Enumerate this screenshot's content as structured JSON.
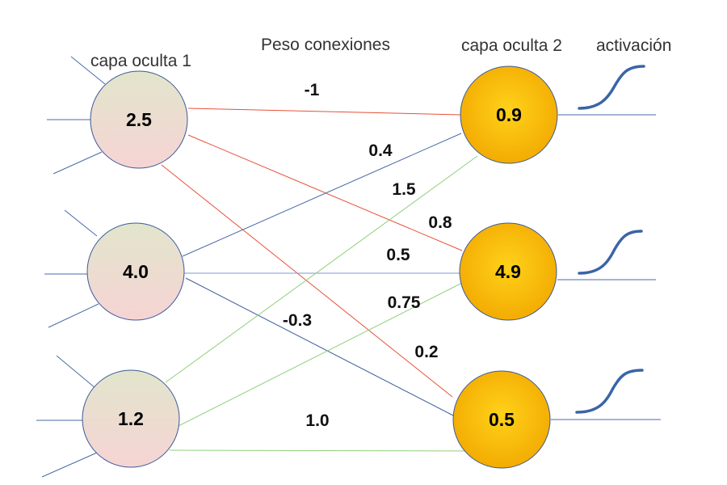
{
  "labels": {
    "layer1": "capa oculta 1",
    "weights_title": "Peso conexiones",
    "layer2": "capa oculta 2",
    "activation": "activación"
  },
  "layer1_nodes": [
    {
      "value": "2.5"
    },
    {
      "value": "4.0"
    },
    {
      "value": "1.2"
    }
  ],
  "layer2_nodes": [
    {
      "value": "0.9"
    },
    {
      "value": "4.9"
    },
    {
      "value": "0.5"
    }
  ],
  "connections": [
    {
      "from": 0,
      "to": 0,
      "weight": "-1",
      "color": "#e8503a"
    },
    {
      "from": 0,
      "to": 1,
      "weight": "0.8",
      "color": "#e8503a"
    },
    {
      "from": 0,
      "to": 2,
      "weight": "0.2",
      "color": "#e8503a"
    },
    {
      "from": 1,
      "to": 0,
      "weight": "0.4",
      "color": "#4a6aa8"
    },
    {
      "from": 1,
      "to": 1,
      "weight": "0.5",
      "color": "#7a9ad0"
    },
    {
      "from": 1,
      "to": 2,
      "weight": "-0.3",
      "color": "#3a5a98"
    },
    {
      "from": 2,
      "to": 0,
      "weight": "1.5",
      "color": "#8fd07a"
    },
    {
      "from": 2,
      "to": 1,
      "weight": "0.75",
      "color": "#8fd07a"
    },
    {
      "from": 2,
      "to": 2,
      "weight": "1.0",
      "color": "#8fd07a"
    }
  ],
  "colors": {
    "layer1_fill_top": "#e2e5cc",
    "layer1_fill_bottom": "#f6d4d4",
    "layer2_fill_outer": "#f2a800",
    "layer2_fill_inner": "#ffd21a",
    "node_stroke": "#3a5a98",
    "activation_curve": "#3a64a8",
    "line_blue": "#4a6aa8"
  }
}
